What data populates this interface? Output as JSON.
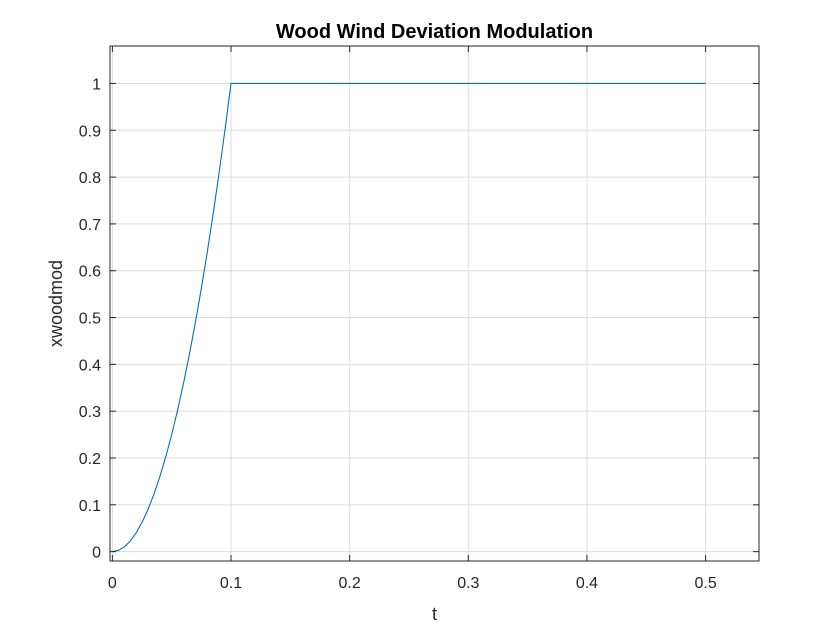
{
  "chart_data": {
    "type": "line",
    "title": "Wood Wind Deviation Modulation",
    "xlabel": "t",
    "ylabel": "xwoodmod",
    "xlim": [
      -0.002,
      0.545
    ],
    "ylim": [
      -0.02,
      1.08
    ],
    "grid": true,
    "xticks": [
      0,
      0.1,
      0.2,
      0.3,
      0.4,
      0.5
    ],
    "xtick_labels": [
      "0",
      "0.1",
      "0.2",
      "0.3",
      "0.4",
      "0.5"
    ],
    "yticks": [
      0,
      0.1,
      0.2,
      0.3,
      0.4,
      0.5,
      0.6,
      0.7,
      0.8,
      0.9,
      1
    ],
    "ytick_labels": [
      "0",
      "0.1",
      "0.2",
      "0.3",
      "0.4",
      "0.5",
      "0.6",
      "0.7",
      "0.8",
      "0.9",
      "1"
    ],
    "series": [
      {
        "color": "#0072BD",
        "x": [
          0,
          0.005,
          0.01,
          0.015,
          0.02,
          0.025,
          0.03,
          0.035,
          0.04,
          0.045,
          0.05,
          0.055,
          0.06,
          0.065,
          0.07,
          0.075,
          0.08,
          0.085,
          0.09,
          0.095,
          0.1,
          0.2,
          0.3,
          0.4,
          0.5
        ],
        "y": [
          0,
          0.0025,
          0.01,
          0.0225,
          0.04,
          0.0625,
          0.09,
          0.1225,
          0.16,
          0.2025,
          0.25,
          0.3025,
          0.36,
          0.4225,
          0.49,
          0.5625,
          0.64,
          0.7225,
          0.81,
          0.9025,
          1,
          1,
          1,
          1,
          1
        ]
      }
    ]
  }
}
